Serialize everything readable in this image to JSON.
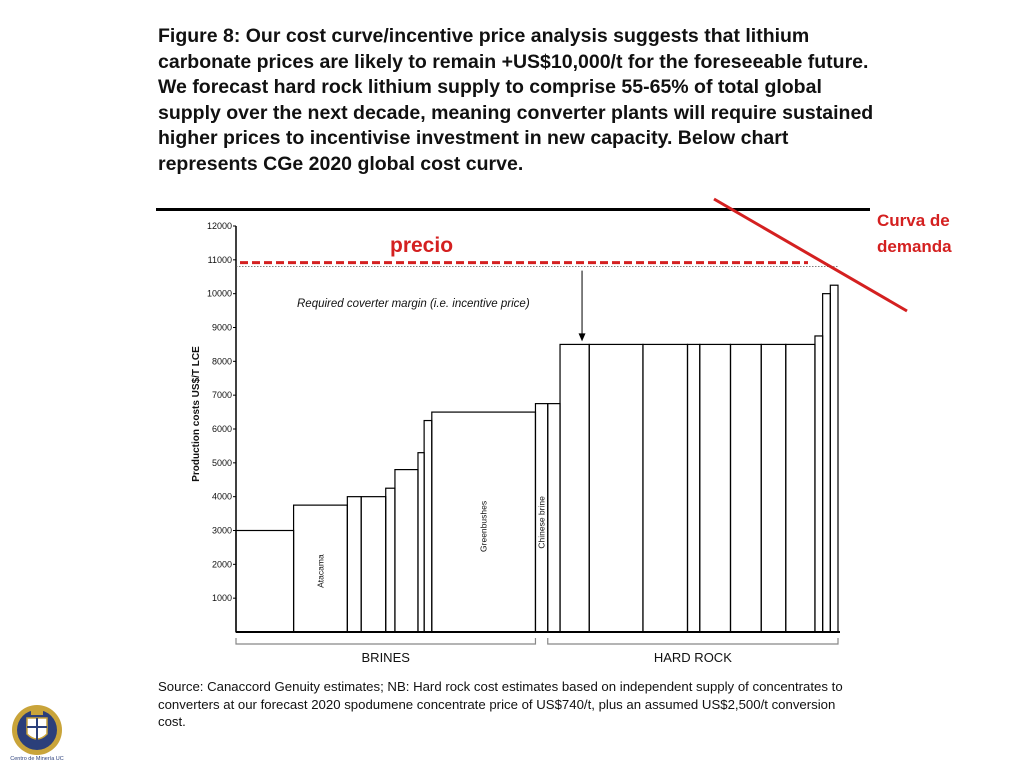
{
  "title": "Figure 8: Our cost curve/incentive price analysis suggests that lithium carbonate prices are likely to remain +US$10,000/t for the foreseeable future. We forecast hard rock lithium supply to comprise 55-65% of total global supply over the next decade, meaning converter plants will require sustained higher prices to incentivise investment in new capacity. Below chart represents CGe 2020 global cost curve.",
  "source": "Source: Canaccord Genuity estimates; NB: Hard rock cost estimates based on independent supply of concentrates to converters at our forecast 2020 spodumene concentrate price of US$740/t, plus an assumed US$2,500/t conversion cost.",
  "annotations": {
    "price": "precio",
    "demand_line1": "Curva de",
    "demand_line2": "demanda",
    "margin": "Required coverter margin (i.e. incentive price)"
  },
  "colors": {
    "accent_red": "#d42020",
    "axis": "#000000",
    "bars": "#000000"
  },
  "logo": {
    "text": "Centro de Minería UC",
    "icon": "university-crest-icon"
  },
  "chart_data": {
    "type": "bar",
    "subtype": "cost-curve-step",
    "ylabel": "Production costs US$/T LCE",
    "ylim": [
      0,
      12000
    ],
    "yticks": [
      1000,
      2000,
      3000,
      4000,
      5000,
      6000,
      7000,
      8000,
      9000,
      10000,
      11000,
      12000
    ],
    "series": [
      {
        "values": [
          3000,
          3750,
          4000,
          4000,
          4250,
          4800,
          5300,
          6250,
          6500,
          6750,
          6750,
          8500,
          8500,
          8500,
          8500,
          8500,
          8500,
          8500,
          8500,
          8750,
          10000,
          10250
        ],
        "capacity_share": [
          0.075,
          0.07,
          0.018,
          0.032,
          0.012,
          0.03,
          0.008,
          0.01,
          0.135,
          0.016,
          0.016,
          0.038,
          0.07,
          0.058,
          0.016,
          0.04,
          0.04,
          0.032,
          0.038,
          0.01,
          0.01,
          0.01
        ]
      }
    ],
    "bar_labels": [
      {
        "bar": 1,
        "text": "Atacama"
      },
      {
        "bar": 8,
        "text": "Greenbushes"
      },
      {
        "bar": 9,
        "text": "Chinese brine"
      }
    ],
    "groups": [
      {
        "label": "BRINES",
        "first_bar": 0,
        "last_bar": 8
      },
      {
        "label": "HARD ROCK",
        "first_bar": 10,
        "last_bar": 21
      }
    ],
    "incentive_price": 10800,
    "annotation_value": 10800
  }
}
